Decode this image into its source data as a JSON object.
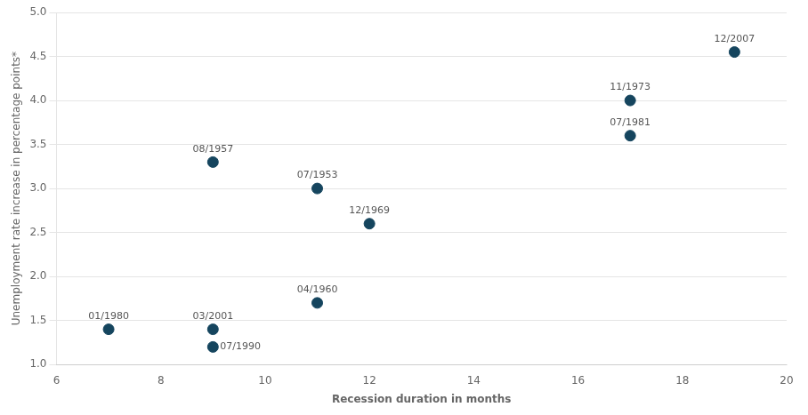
{
  "chart_data": {
    "type": "scatter",
    "xlabel": "Recession duration in months",
    "ylabel": "Unemployment rate increase in percentage points*",
    "x": [
      7,
      9,
      9,
      9,
      11,
      11,
      12,
      17,
      17,
      19
    ],
    "values": [
      1.4,
      3.3,
      1.4,
      1.2,
      3.0,
      1.7,
      2.6,
      4.0,
      3.6,
      4.55
    ],
    "labels": [
      "01/1980",
      "08/1957",
      "03/2001",
      "07/1990",
      "07/1953",
      "04/1960",
      "12/1969",
      "11/1973",
      "07/1981",
      "12/2007"
    ],
    "color": "#15455e",
    "xlim": [
      6,
      20
    ],
    "ylim": [
      1.0,
      5.0
    ],
    "xticks": [
      6,
      8,
      10,
      12,
      14,
      16,
      18,
      20
    ],
    "yticks": [
      {
        "value": 1.0,
        "label": "1.0"
      },
      1.5,
      {
        "value": 2.0,
        "label": "2.0"
      },
      2.5,
      {
        "value": 3.0,
        "label": "3.0"
      },
      3.5,
      {
        "value": 4.0,
        "label": "4.0"
      },
      4.5,
      {
        "value": 5.0,
        "label": "5.0"
      }
    ],
    "grid": "y"
  }
}
